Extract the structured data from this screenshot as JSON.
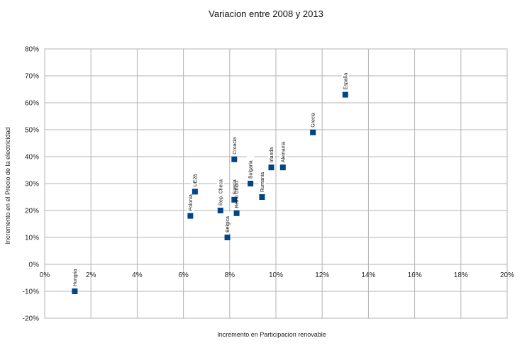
{
  "chart_data": {
    "type": "scatter",
    "title": "Variacion entre 2008 y 2013",
    "xlabel": "Incremento en Participacion renovable",
    "ylabel": "Incremento en el Precio de la electricidad",
    "xlim": [
      0,
      20
    ],
    "ylim": [
      -20,
      80
    ],
    "x_ticks": [
      0,
      2,
      4,
      6,
      8,
      10,
      12,
      14,
      16,
      18,
      20
    ],
    "y_ticks": [
      -20,
      -10,
      0,
      10,
      20,
      30,
      40,
      50,
      60,
      70,
      80
    ],
    "x_tick_labels": [
      "0%",
      "2%",
      "4%",
      "6%",
      "8%",
      "10%",
      "12%",
      "14%",
      "16%",
      "18%",
      "20%"
    ],
    "y_tick_labels": [
      "-20%",
      "-10%",
      "0%",
      "10%",
      "20%",
      "30%",
      "40%",
      "50%",
      "60%",
      "70%",
      "80%"
    ],
    "grid": true,
    "marker_color": "#004586",
    "points": [
      {
        "label": "Hungria",
        "x": 1.3,
        "y": -10
      },
      {
        "label": "Polonia",
        "x": 6.3,
        "y": 18
      },
      {
        "label": "UE28",
        "x": 6.5,
        "y": 27
      },
      {
        "label": "Rep. Checa",
        "x": 7.6,
        "y": 20
      },
      {
        "label": "Belgica",
        "x": 7.9,
        "y": 10
      },
      {
        "label": "Croacia",
        "x": 8.2,
        "y": 39
      },
      {
        "label": "Suecia",
        "x": 8.2,
        "y": 24
      },
      {
        "label": "Reino Unido",
        "x": 8.3,
        "y": 19
      },
      {
        "label": "Bulgaria",
        "x": 8.9,
        "y": 30
      },
      {
        "label": "Rumania",
        "x": 9.4,
        "y": 25
      },
      {
        "label": "Irlanda",
        "x": 9.8,
        "y": 36
      },
      {
        "label": "Alemania",
        "x": 10.3,
        "y": 36
      },
      {
        "label": "Grecia",
        "x": 11.6,
        "y": 49
      },
      {
        "label": "España",
        "x": 13.0,
        "y": 63
      }
    ]
  }
}
